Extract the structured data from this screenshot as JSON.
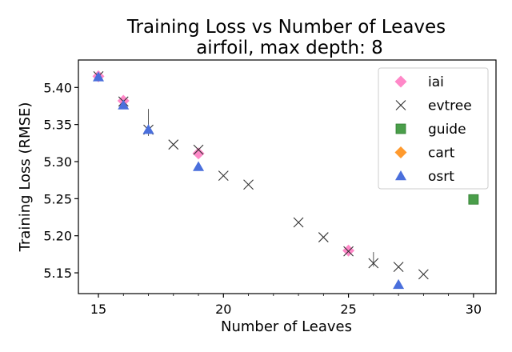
{
  "chart_data": {
    "type": "scatter",
    "title": "Training Loss vs Number of Leaves",
    "subtitle": "airfoil, max depth: 8",
    "xlabel": "Number of Leaves",
    "ylabel": "Training Loss (RMSE)",
    "xlim": [
      14.2,
      30.9
    ],
    "ylim": [
      5.122,
      5.437
    ],
    "x_ticks": [
      15,
      20,
      25,
      30
    ],
    "x_tick_labels": [
      "15",
      "20",
      "25",
      "30"
    ],
    "y_ticks": [
      5.15,
      5.2,
      5.25,
      5.3,
      5.35,
      5.4
    ],
    "y_tick_labels": [
      "5.15",
      "5.20",
      "5.25",
      "5.30",
      "5.35",
      "5.40"
    ],
    "grid": false,
    "legend_position": "top-right",
    "series": [
      {
        "name": "iai",
        "marker": "diamond",
        "color": "#ff88c8",
        "points": [
          {
            "x": 15,
            "y": 5.415
          },
          {
            "x": 16,
            "y": 5.382
          },
          {
            "x": 19,
            "y": 5.311
          },
          {
            "x": 25,
            "y": 5.18
          }
        ]
      },
      {
        "name": "evtree",
        "marker": "x",
        "color": "#333333",
        "points": [
          {
            "x": 15,
            "y": 5.415
          },
          {
            "x": 16,
            "y": 5.381
          },
          {
            "x": 17,
            "y": 5.343,
            "err": 0.028
          },
          {
            "x": 18,
            "y": 5.323
          },
          {
            "x": 19,
            "y": 5.316
          },
          {
            "x": 20,
            "y": 5.281
          },
          {
            "x": 21,
            "y": 5.269
          },
          {
            "x": 23,
            "y": 5.218
          },
          {
            "x": 24,
            "y": 5.198
          },
          {
            "x": 25,
            "y": 5.179
          },
          {
            "x": 26,
            "y": 5.163,
            "err": 0.015
          },
          {
            "x": 27,
            "y": 5.158
          },
          {
            "x": 28,
            "y": 5.148
          }
        ]
      },
      {
        "name": "guide",
        "marker": "square",
        "color": "#4a9e4a",
        "points": [
          {
            "x": 30,
            "y": 5.249
          }
        ]
      },
      {
        "name": "cart",
        "marker": "diamond",
        "color": "#ff9a2e",
        "points": []
      },
      {
        "name": "osrt",
        "marker": "triangle",
        "color": "#4a6fdc",
        "points": [
          {
            "x": 15,
            "y": 5.414
          },
          {
            "x": 16,
            "y": 5.376
          },
          {
            "x": 17,
            "y": 5.343
          },
          {
            "x": 19,
            "y": 5.293
          },
          {
            "x": 27,
            "y": 5.134
          }
        ]
      }
    ]
  }
}
